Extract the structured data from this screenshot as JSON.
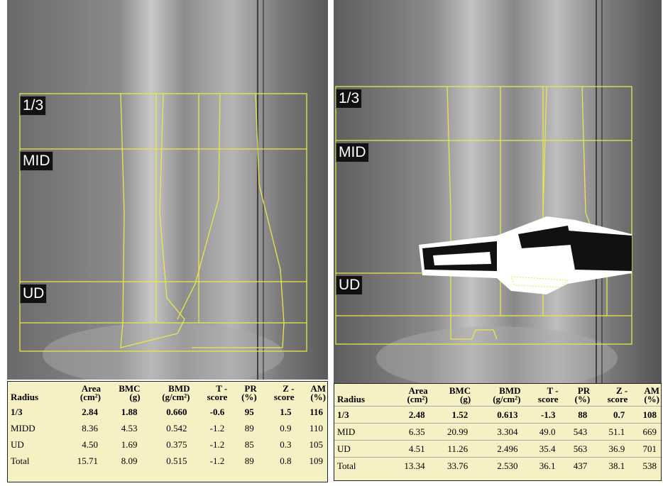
{
  "panels": [
    {
      "labels": [
        "1/3",
        "MID",
        "UD"
      ],
      "table": {
        "headers": [
          [
            "Radius"
          ],
          [
            "Area",
            "(cm²)"
          ],
          [
            "BMC",
            "(g)"
          ],
          [
            "BMD",
            "(g/cm²)"
          ],
          [
            "T -",
            "score"
          ],
          [
            "PR",
            "(%)"
          ],
          [
            "Z -",
            "score"
          ],
          [
            "AM",
            "(%)"
          ]
        ],
        "rows": [
          [
            "1/3",
            "2.84",
            "1.88",
            "0.660",
            "-0.6",
            "95",
            "1.5",
            "116"
          ],
          [
            "MIDD",
            "8.36",
            "4.53",
            "0.542",
            "-1.2",
            "89",
            "0.9",
            "110"
          ],
          [
            "UD",
            "4.50",
            "1.69",
            "0.375",
            "-1.2",
            "85",
            "0.3",
            "105"
          ],
          [
            "Total",
            "15.71",
            "8.09",
            "0.515",
            "-1.2",
            "89",
            "0.8",
            "109"
          ]
        ]
      }
    },
    {
      "labels": [
        "1/3",
        "MID",
        "UD"
      ],
      "table": {
        "headers": [
          [
            "Radius"
          ],
          [
            "Area",
            "(cm²)"
          ],
          [
            "BMC",
            "(g)"
          ],
          [
            "BMD",
            "(g/cm²)"
          ],
          [
            "T -",
            "score"
          ],
          [
            "PR",
            "(%)"
          ],
          [
            "Z -",
            "score"
          ],
          [
            "AM",
            "(%)"
          ]
        ],
        "rows": [
          [
            "1/3",
            "2.48",
            "1.52",
            "0.613",
            "-1.3",
            "88",
            "0.7",
            "108"
          ],
          [
            "MID",
            "6.35",
            "20.99",
            "3.304",
            "49.0",
            "543",
            "51.1",
            "669"
          ],
          [
            "UD",
            "4.51",
            "11.26",
            "2.496",
            "35.4",
            "563",
            "36.9",
            "701"
          ],
          [
            "Total",
            "13.34",
            "33.76",
            "2.530",
            "36.1",
            "437",
            "38.1",
            "538"
          ]
        ]
      }
    }
  ]
}
